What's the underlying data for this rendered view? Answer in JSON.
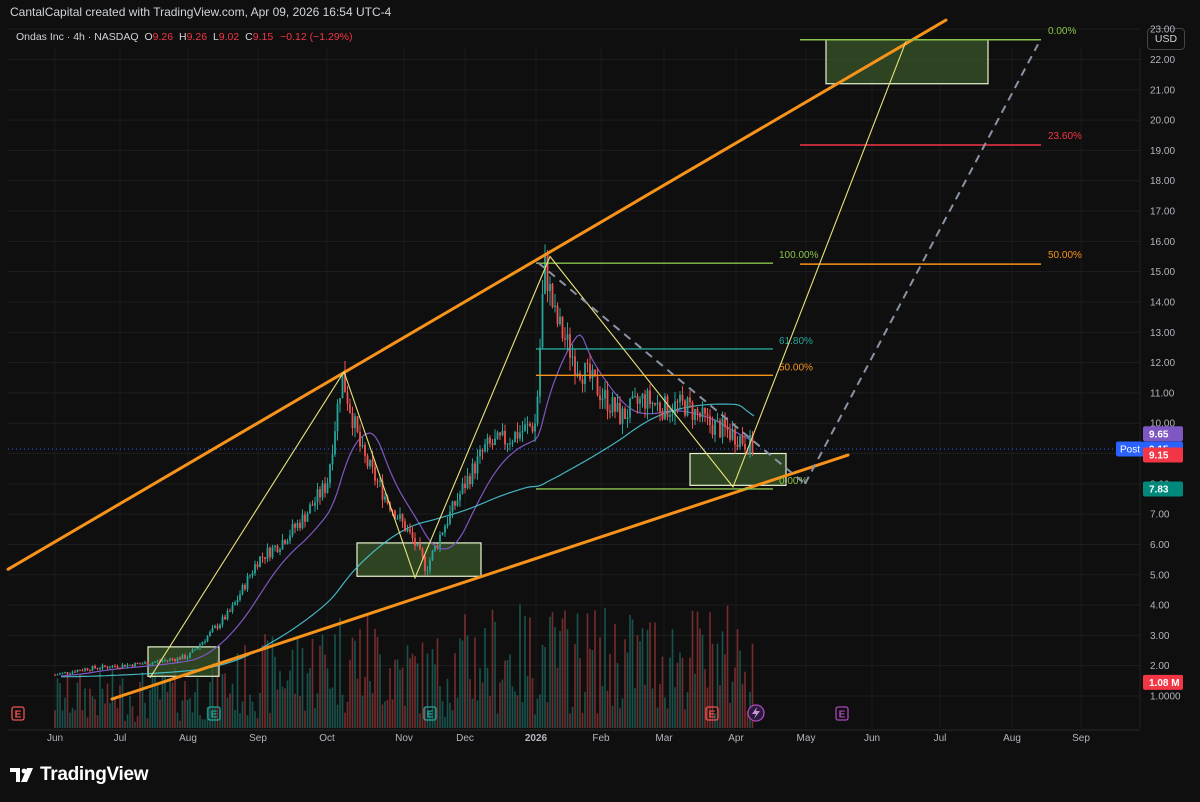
{
  "header": {
    "title": "CantalCapital created with TradingView.com, Apr 09, 2026 16:54 UTC-4"
  },
  "legend": {
    "symbol": "Ondas Inc · 4h · NASDAQ",
    "o_key": "O",
    "o_val": "9.26",
    "h_key": "H",
    "h_val": "9.26",
    "l_key": "L",
    "l_val": "9.02",
    "c_key": "C",
    "c_val": "9.15",
    "change": "−0.12 (−1.29%)"
  },
  "currency": "USD",
  "brand": {
    "name": "TradingView",
    "icon": "tradingview-logo-icon"
  },
  "colors": {
    "background": "#0f0f0f",
    "up": "#26a69a",
    "down": "#ef5350",
    "trend": "#f7931a",
    "zigzag": "#e8e37a",
    "ma_fast": "#7e57c2",
    "ma_slow": "#4dd0e1",
    "fib_green": "#8bc34a",
    "fib_red": "#f23645",
    "fib_orange": "#f7931a",
    "fib_teal": "#26a69a"
  },
  "chart_data": {
    "type": "line",
    "title": "",
    "xlabel": "",
    "ylabel": "",
    "ylim": [
      1,
      23.3
    ],
    "y_ticks": [
      "23.00",
      "22.00",
      "21.00",
      "20.00",
      "19.00",
      "18.00",
      "17.00",
      "16.00",
      "15.00",
      "14.00",
      "13.00",
      "12.00",
      "11.00",
      "10.00",
      "9.00",
      "8.00",
      "7.00",
      "6.00",
      "5.00",
      "4.00",
      "3.00",
      "2.00",
      "1.0000"
    ],
    "x_ticks": [
      "Jun",
      "Jul",
      "Aug",
      "Sep",
      "Oct",
      "Nov",
      "Dec",
      "2026",
      "Feb",
      "Mar",
      "Apr",
      "May",
      "Jun",
      "Jul",
      "Aug",
      "Sep"
    ],
    "grid": true,
    "price_labels": [
      {
        "text": "9.65",
        "price": 9.65,
        "color": "#7e57c2"
      },
      {
        "text": "9.15",
        "price": 9.15,
        "color": "#2962ff",
        "tag": "Post"
      },
      {
        "text": "9.15",
        "price": 8.95,
        "color": "#f23645"
      },
      {
        "text": "7.83",
        "price": 7.83,
        "color": "#00897b"
      },
      {
        "text": "1.08 M",
        "price": 1.45,
        "color": "#f23645"
      }
    ],
    "fib_upper": [
      {
        "label": "0.00%",
        "price": 22.65
      },
      {
        "label": "23.60%",
        "price": 19.18
      },
      {
        "label": "50.00%",
        "price": 15.25
      }
    ],
    "fib_lower": [
      {
        "label": "100.00%",
        "price": 15.28
      },
      {
        "label": "61.80%",
        "price": 12.45
      },
      {
        "label": "50.00%",
        "price": 11.58
      },
      {
        "label": "0.00%",
        "price": 7.83
      }
    ],
    "zones": [
      {
        "start": "Jul 13",
        "end": "Aug 21",
        "low": 1.65,
        "high": 2.62
      },
      {
        "start": "Oct 13",
        "end": "Nov 30",
        "low": 4.95,
        "high": 6.05
      },
      {
        "start": "Mar 15",
        "end": "Apr 15",
        "low": 7.95,
        "high": 9.0
      },
      {
        "start": "May 20",
        "end": "Jul 15",
        "low": 21.2,
        "high": 22.65
      }
    ],
    "series": [
      {
        "name": "",
        "x": [
          "Jun 01",
          "Jun 15",
          "Jul 01",
          "Jul 15",
          "Aug 01",
          "Aug 10",
          "Aug 20",
          "Sep 01",
          "Sep 10",
          "Sep 20",
          "Oct 01",
          "Oct 07",
          "Oct 15",
          "Oct 25",
          "Nov 05",
          "Nov 12",
          "Nov 20",
          "Dec 01",
          "Dec 10",
          "Dec 20",
          "Jan 01",
          "Jan 05",
          "Jan 10",
          "Jan 20",
          "Feb 01",
          "Feb 10",
          "Feb 20",
          "Mar 01",
          "Mar 10",
          "Mar 20",
          "Apr 01",
          "Apr 09"
        ],
        "values": [
          1.7,
          1.9,
          2.0,
          2.1,
          2.3,
          3.0,
          3.8,
          5.5,
          6.0,
          6.8,
          8.0,
          11.6,
          9.0,
          7.5,
          6.2,
          5.2,
          6.5,
          8.0,
          9.2,
          9.5,
          10.0,
          15.3,
          13.5,
          12.0,
          11.0,
          10.2,
          10.8,
          10.5,
          10.6,
          10.0,
          9.6,
          9.15
        ]
      }
    ]
  }
}
